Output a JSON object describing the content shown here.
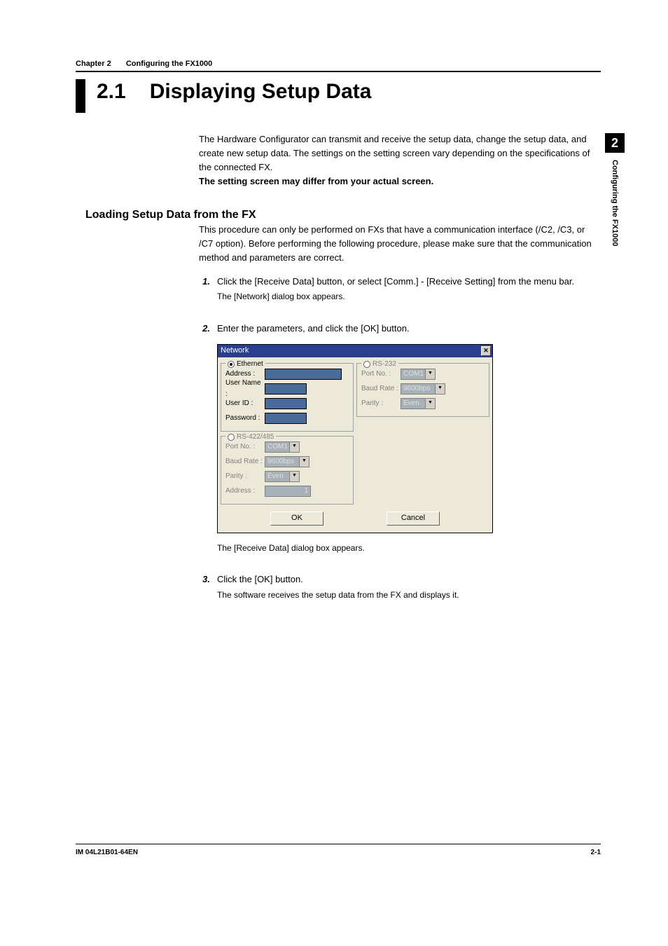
{
  "header": {
    "chapter_label": "Chapter 2",
    "chapter_title": "Configuring the FX1000"
  },
  "section": {
    "number": "2.1",
    "title": "Displaying Setup Data"
  },
  "intro": {
    "p1": "The Hardware Configurator can transmit and receive the setup data, change the setup data, and create new setup data.  The settings on the setting screen vary depending on the specifications of the connected FX.",
    "p2_bold": "The setting screen may differ from your actual screen."
  },
  "subsection": {
    "heading": "Loading Setup Data from the FX",
    "intro": "This procedure can only be performed on FXs that have a communication interface (/C2, /C3, or /C7 option). Before performing the following procedure, please make sure that the communication method and parameters are correct."
  },
  "steps": [
    {
      "num": "1.",
      "text": "Click the [Receive Data] button, or select [Comm.] - [Receive Setting] from the menu bar.",
      "sub": "The [Network] dialog box appears."
    },
    {
      "num": "2.",
      "text": "Enter the parameters, and click the [OK] button."
    },
    {
      "num": "",
      "text": "",
      "sub": "The [Receive Data] dialog box appears."
    },
    {
      "num": "3.",
      "text": "Click the [OK] button.",
      "sub": "The software receives the setup data from the FX and displays it."
    }
  ],
  "dialog": {
    "title": "Network",
    "ethernet": {
      "legend": "Ethernet",
      "selected": true,
      "address_label": "Address :",
      "username_label": "User Name :",
      "userid_label": "User ID :",
      "password_label": "Password :"
    },
    "rs422": {
      "legend": "RS-422/485",
      "selected": false,
      "portno_label": "Port No. :",
      "portno_value": "COM1",
      "baud_label": "Baud Rate :",
      "baud_value": "9600bps",
      "parity_label": "Parity :",
      "parity_value": "Even",
      "address_label": "Address :",
      "address_value": "1"
    },
    "rs232": {
      "legend": "RS-232",
      "selected": false,
      "portno_label": "Port No. :",
      "portno_value": "COM1",
      "baud_label": "Baud Rate :",
      "baud_value": "9600bps",
      "parity_label": "Parity :",
      "parity_value": "Even"
    },
    "ok": "OK",
    "cancel": "Cancel"
  },
  "side_tab": {
    "number": "2",
    "text": "Configuring the FX1000"
  },
  "footer": {
    "doc_id": "IM 04L21B01-64EN",
    "page": "2-1"
  },
  "colors": {
    "dialog_bg": "#ece9d8",
    "titlebar_bg": "#2a3f8f",
    "field_bg": "#4a6a9a"
  }
}
